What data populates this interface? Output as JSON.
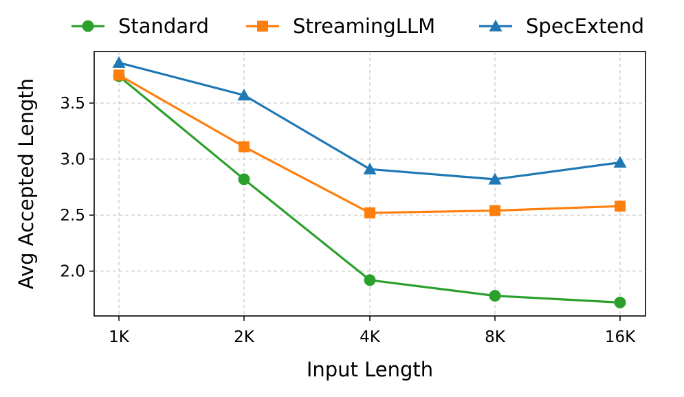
{
  "chart_data": {
    "type": "line",
    "title": "",
    "xlabel": "Input Length",
    "ylabel": "Avg Accepted Length",
    "categories": [
      "1K",
      "2K",
      "4K",
      "8K",
      "16K"
    ],
    "ylim": [
      1.6,
      3.96
    ],
    "yticks": [
      2.0,
      2.5,
      3.0,
      3.5
    ],
    "ytick_labels": [
      "2.0",
      "2.5",
      "3.0",
      "3.5"
    ],
    "grid": true,
    "legend_position": "top",
    "series": [
      {
        "name": "Standard",
        "color": "#2ca02c",
        "marker": "circle",
        "values": [
          3.74,
          2.82,
          1.92,
          1.78,
          1.72
        ]
      },
      {
        "name": "StreamingLLM",
        "color": "#ff7f0e",
        "marker": "square",
        "values": [
          3.75,
          3.11,
          2.52,
          2.54,
          2.58
        ]
      },
      {
        "name": "SpecExtend",
        "color": "#1f77b4",
        "marker": "triangle",
        "values": [
          3.86,
          3.57,
          2.91,
          2.82,
          2.97
        ]
      }
    ]
  }
}
